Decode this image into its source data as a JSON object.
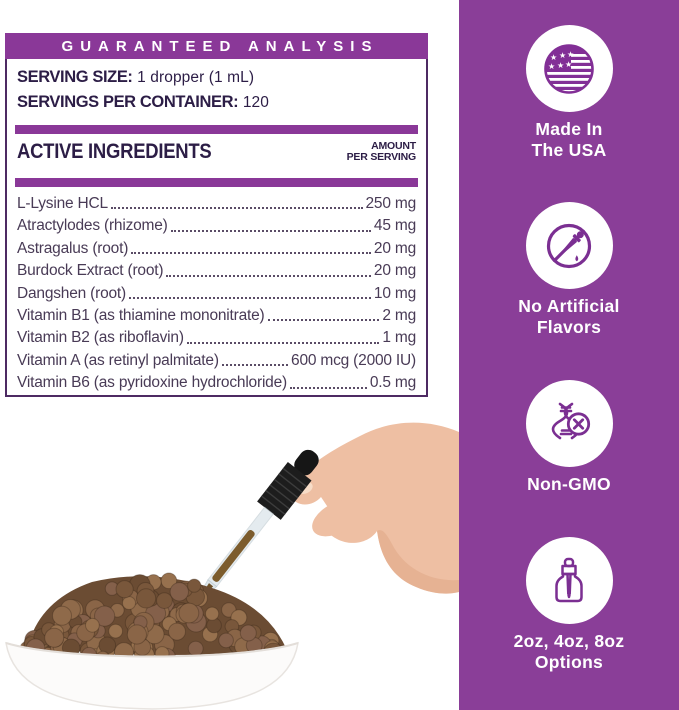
{
  "colors": {
    "sidebar_purple": "#8a3e98",
    "bar_purple": "#8a3898",
    "panel_border": "#4e2a63",
    "heading_text": "#2c1d46",
    "body_text": "#493b56",
    "badge_icon_purple": "#7b2f92",
    "badge_text": "#ffffff"
  },
  "label_panel": {
    "header": "GUARANTEED ANALYSIS",
    "serving_size_label": "SERVING SIZE:",
    "serving_size_value": "1 dropper (1 mL)",
    "servings_label": "SERVINGS PER CONTAINER:",
    "servings_value": "120",
    "columns": {
      "left": "ACTIVE INGREDIENTS",
      "right_line1": "AMOUNT",
      "right_line2": "PER SERVING"
    },
    "ingredients": [
      {
        "name": "L-Lysine HCL",
        "amount": "250 mg"
      },
      {
        "name": "Atractylodes (rhizome)",
        "amount": "45 mg"
      },
      {
        "name": "Astragalus (root)",
        "amount": "20 mg"
      },
      {
        "name": "Burdock Extract (root)",
        "amount": "20 mg"
      },
      {
        "name": "Dangshen (root)",
        "amount": "10 mg"
      },
      {
        "name": "Vitamin B1 (as thiamine mononitrate)",
        "amount": "2 mg"
      },
      {
        "name": "Vitamin B2 (as riboflavin)",
        "amount": "1 mg"
      },
      {
        "name": "Vitamin A (as retinyl palmitate)",
        "amount": "600 mcg (2000 IU)"
      },
      {
        "name": "Vitamin B6 (as pyridoxine hydrochloride)",
        "amount": "0.5 mg"
      }
    ]
  },
  "sidebar": {
    "badges": [
      {
        "icon": "usa-flag-icon",
        "line1": "Made In",
        "line2": "The USA"
      },
      {
        "icon": "no-artificial-flavors-icon",
        "line1": "No Artificial",
        "line2": "Flavors"
      },
      {
        "icon": "non-gmo-icon",
        "line1": "Non-GMO",
        "line2": ""
      },
      {
        "icon": "dropper-bottle-icon",
        "line1": "2oz, 4oz, 8oz",
        "line2": "Options"
      }
    ]
  }
}
